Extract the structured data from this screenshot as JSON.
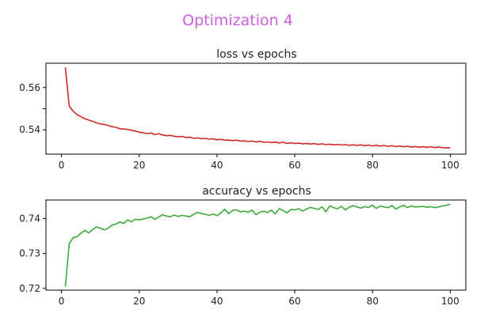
{
  "figure": {
    "title": "Optimization 4",
    "title_color": "#cc5fe0"
  },
  "chart_data": [
    {
      "type": "line",
      "title": "loss vs epochs",
      "xlabel": "",
      "ylabel": "",
      "xlim": [
        -4,
        104
      ],
      "ylim": [
        0.5285,
        0.5715
      ],
      "xticks": [
        0,
        20,
        40,
        60,
        80,
        100
      ],
      "yticks": [
        0.54,
        0.55,
        0.56
      ],
      "ytick_labels": [
        "0.54",
        "",
        "0.56"
      ],
      "grid": false,
      "series": [
        {
          "color": "#d62728",
          "x": [
            1,
            2,
            3,
            4,
            5,
            6,
            7,
            8,
            9,
            10,
            11,
            12,
            13,
            14,
            15,
            16,
            17,
            18,
            19,
            20,
            21,
            22,
            23,
            24,
            25,
            26,
            27,
            28,
            29,
            30,
            31,
            32,
            33,
            34,
            35,
            36,
            37,
            38,
            39,
            40,
            41,
            42,
            43,
            44,
            45,
            46,
            47,
            48,
            49,
            50,
            51,
            52,
            53,
            54,
            55,
            56,
            57,
            58,
            59,
            60,
            61,
            62,
            63,
            64,
            65,
            66,
            67,
            68,
            69,
            70,
            71,
            72,
            73,
            74,
            75,
            76,
            77,
            78,
            79,
            80,
            81,
            82,
            83,
            84,
            85,
            86,
            87,
            88,
            89,
            90,
            91,
            92,
            93,
            94,
            95,
            96,
            97,
            98,
            99,
            100
          ],
          "y": [
            0.5695,
            0.5512,
            0.5488,
            0.5472,
            0.5462,
            0.5453,
            0.5446,
            0.544,
            0.5434,
            0.5428,
            0.5425,
            0.5421,
            0.5415,
            0.5412,
            0.5405,
            0.5404,
            0.5402,
            0.5398,
            0.5394,
            0.5389,
            0.5386,
            0.5383,
            0.5385,
            0.5378,
            0.5382,
            0.5376,
            0.5372,
            0.5374,
            0.537,
            0.5367,
            0.5369,
            0.5364,
            0.5365,
            0.536,
            0.5362,
            0.5358,
            0.5359,
            0.5356,
            0.5357,
            0.5353,
            0.5355,
            0.5351,
            0.5352,
            0.5349,
            0.5351,
            0.5347,
            0.5348,
            0.5345,
            0.5347,
            0.5343,
            0.5346,
            0.5341,
            0.5343,
            0.534,
            0.5342,
            0.5338,
            0.5341,
            0.5336,
            0.5339,
            0.5335,
            0.5337,
            0.5334,
            0.5336,
            0.5333,
            0.5335,
            0.5331,
            0.5334,
            0.533,
            0.5332,
            0.5329,
            0.5331,
            0.5328,
            0.533,
            0.5327,
            0.5329,
            0.5326,
            0.5329,
            0.5325,
            0.5328,
            0.5324,
            0.5327,
            0.5323,
            0.5326,
            0.5322,
            0.5325,
            0.5321,
            0.5324,
            0.532,
            0.5322,
            0.5319,
            0.5321,
            0.5318,
            0.532,
            0.5317,
            0.532,
            0.5316,
            0.5319,
            0.5316,
            0.5314,
            0.5316
          ]
        }
      ]
    },
    {
      "type": "line",
      "title": "accuracy vs epochs",
      "xlabel": "",
      "ylabel": "",
      "xlim": [
        -4,
        104
      ],
      "ylim": [
        0.7195,
        0.7453
      ],
      "xticks": [
        0,
        20,
        40,
        60,
        80,
        100
      ],
      "yticks": [
        0.72,
        0.73,
        0.74
      ],
      "ytick_labels": [
        "0.72",
        "0.73",
        "0.74"
      ],
      "grid": false,
      "series": [
        {
          "color": "#3aaa3a",
          "x": [
            1,
            2,
            3,
            4,
            5,
            6,
            7,
            8,
            9,
            10,
            11,
            12,
            13,
            14,
            15,
            16,
            17,
            18,
            19,
            20,
            21,
            22,
            23,
            24,
            25,
            26,
            27,
            28,
            29,
            30,
            31,
            32,
            33,
            34,
            35,
            36,
            37,
            38,
            39,
            40,
            41,
            42,
            43,
            44,
            45,
            46,
            47,
            48,
            49,
            50,
            51,
            52,
            53,
            54,
            55,
            56,
            57,
            58,
            59,
            60,
            61,
            62,
            63,
            64,
            65,
            66,
            67,
            68,
            69,
            70,
            71,
            72,
            73,
            74,
            75,
            76,
            77,
            78,
            79,
            80,
            81,
            82,
            83,
            84,
            85,
            86,
            87,
            88,
            89,
            90,
            91,
            92,
            93,
            94,
            95,
            96,
            97,
            98,
            99,
            100
          ],
          "y": [
            0.7205,
            0.7328,
            0.7345,
            0.7348,
            0.7358,
            0.7366,
            0.7359,
            0.7368,
            0.7376,
            0.7372,
            0.7368,
            0.7372,
            0.7381,
            0.7384,
            0.739,
            0.7386,
            0.7396,
            0.7391,
            0.7398,
            0.7396,
            0.7399,
            0.7401,
            0.7405,
            0.7398,
            0.7404,
            0.7411,
            0.7407,
            0.7405,
            0.741,
            0.7406,
            0.7409,
            0.7407,
            0.7405,
            0.7412,
            0.7418,
            0.7414,
            0.7412,
            0.7409,
            0.7413,
            0.7408,
            0.7416,
            0.7427,
            0.7414,
            0.7423,
            0.7425,
            0.7419,
            0.7421,
            0.7418,
            0.7424,
            0.7411,
            0.7418,
            0.7421,
            0.7417,
            0.7424,
            0.7413,
            0.7428,
            0.7423,
            0.7416,
            0.7426,
            0.7425,
            0.7428,
            0.7421,
            0.7427,
            0.7432,
            0.7429,
            0.7426,
            0.7433,
            0.7419,
            0.7436,
            0.7431,
            0.7428,
            0.7435,
            0.7425,
            0.7432,
            0.7437,
            0.7433,
            0.743,
            0.7434,
            0.7432,
            0.7438,
            0.7429,
            0.7436,
            0.7433,
            0.7431,
            0.7437,
            0.7427,
            0.7433,
            0.7438,
            0.7431,
            0.7436,
            0.7433,
            0.7434,
            0.7435,
            0.7432,
            0.7434,
            0.7431,
            0.7433,
            0.7436,
            0.7438,
            0.7441
          ]
        }
      ]
    }
  ]
}
